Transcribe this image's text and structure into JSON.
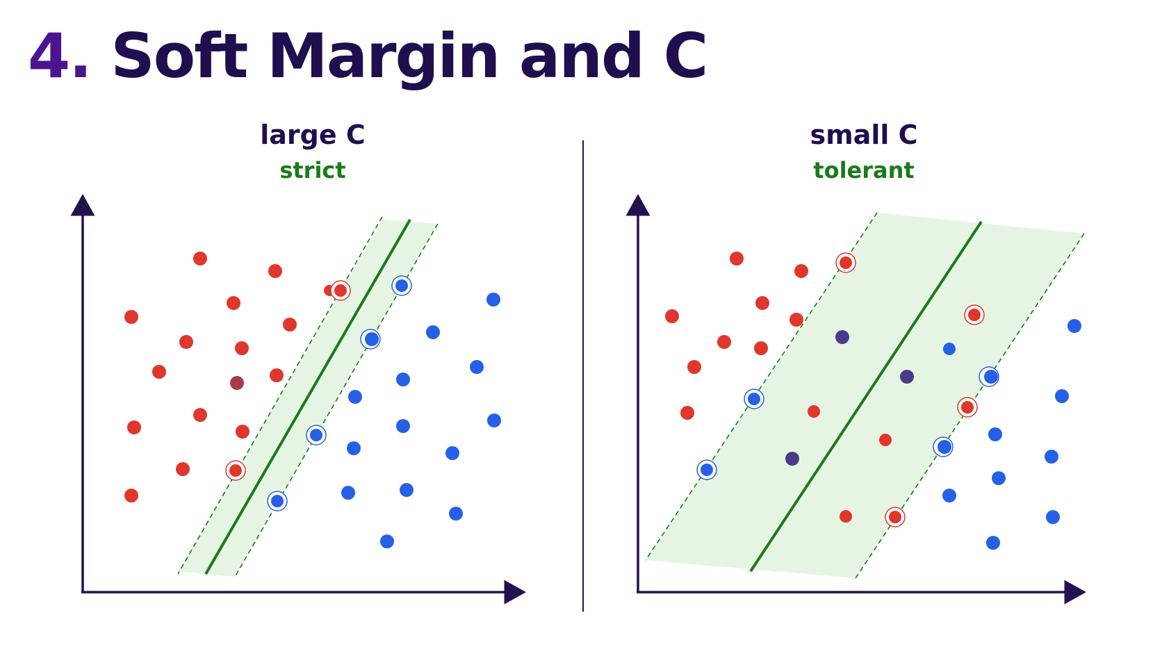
{
  "title": {
    "number": "4.",
    "text": "Soft Margin and C"
  },
  "panels": [
    {
      "label": "large C",
      "sublabel": "strict"
    },
    {
      "label": "small C",
      "sublabel": "tolerant"
    }
  ],
  "colors": {
    "axis": "#24124f",
    "divider": "#24124f",
    "hyperplane": "#1a7a1a",
    "margin_fill": "#e6f5e3",
    "class_red": "#e0362c",
    "class_blue": "#2560e6",
    "misclassified": "#4b3a88",
    "title_number": "#4b1590",
    "title_text": "#1f0f4f",
    "sublabel": "#1a7a1a"
  },
  "legend_semantics": {
    "circled_point": "support-vector",
    "points_inside_band": "margin-violation"
  }
}
